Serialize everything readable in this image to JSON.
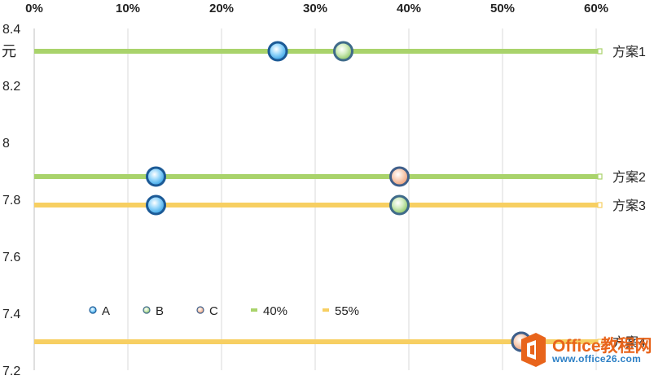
{
  "chart_data": {
    "type": "scatter",
    "title": "",
    "ylabel": "元",
    "xlim": [
      0,
      0.6
    ],
    "ylim": [
      7.2,
      8.4
    ],
    "x_tick_labels": [
      "0%",
      "10%",
      "20%",
      "30%",
      "40%",
      "50%",
      "60%"
    ],
    "y_tick_labels": [
      "7.2",
      "7.4",
      "7.6",
      "7.8",
      "8",
      "8.2",
      "8.4"
    ],
    "grid": "vertical",
    "legend_position": "lower-left",
    "legend": [
      "A",
      "B",
      "C",
      "40%",
      "55%"
    ],
    "lines": [
      {
        "label": "方案1",
        "y": 8.32,
        "line_series": "40%"
      },
      {
        "label": "方案2",
        "y": 7.88,
        "line_series": "40%"
      },
      {
        "label": "方案3",
        "y": 7.78,
        "line_series": "55%"
      },
      {
        "label": "方案4",
        "y": 7.3,
        "line_series": "55%"
      }
    ],
    "series": [
      {
        "name": "A",
        "points": [
          {
            "x": 0.26,
            "y": 8.32
          },
          {
            "x": 0.13,
            "y": 7.88
          },
          {
            "x": 0.13,
            "y": 7.78
          },
          {
            "x": 0.52,
            "y": 7.3
          }
        ]
      },
      {
        "name": "B",
        "points": [
          {
            "x": 0.33,
            "y": 8.32
          },
          {
            "x": 0.39,
            "y": 7.78
          }
        ]
      },
      {
        "name": "C",
        "points": [
          {
            "x": 0.39,
            "y": 7.88
          },
          {
            "x": 0.52,
            "y": 7.3
          }
        ]
      }
    ],
    "colors": {
      "A": "#35a6e8",
      "B": "#8fc86a",
      "C": "#f0a582",
      "line_40": "#a9d36b",
      "line_55": "#f7cf62",
      "grid": "#d9d9d9"
    }
  },
  "watermark": {
    "brand": "Office教程网",
    "site": "www.office26.com"
  }
}
